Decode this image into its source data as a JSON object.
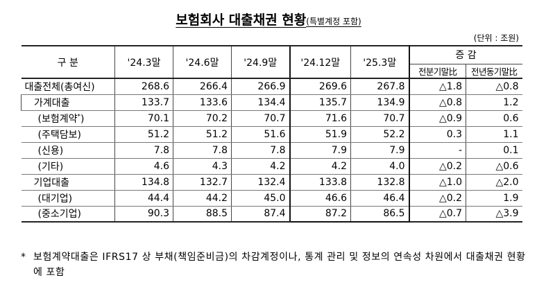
{
  "title": {
    "main": "보험회사 대출채권 현황",
    "sub": "(특별계정 포함)"
  },
  "unit": "(단위 : 조원)",
  "header": {
    "category": "구  분",
    "periods": [
      "'24.3말",
      "'24.6말",
      "'24.9말",
      "'24.12말",
      "'25.3말"
    ],
    "change": "증   감",
    "qoq": "전분기말比",
    "yoy": "전년동기말比"
  },
  "rows": [
    {
      "label": "대출전체(총여신)",
      "values": [
        "268.6",
        "266.4",
        "266.9",
        "269.6",
        "267.8"
      ],
      "qoq": "△1.8",
      "yoy": "△0.8"
    },
    {
      "label": "가계대출",
      "values": [
        "133.7",
        "133.6",
        "134.4",
        "135.7",
        "134.9"
      ],
      "qoq": "△0.8",
      "yoy": "1.2"
    },
    {
      "label": "(보험계약",
      "label_sup": "*",
      "label_tail": ")",
      "values": [
        "70.1",
        "70.2",
        "70.7",
        "71.6",
        "70.7"
      ],
      "qoq": "△0.9",
      "yoy": "0.6"
    },
    {
      "label": "(주택담보)",
      "values": [
        "51.2",
        "51.2",
        "51.6",
        "51.9",
        "52.2"
      ],
      "qoq": "0.3",
      "yoy": "1.1"
    },
    {
      "label": "(신용)",
      "values": [
        "7.8",
        "7.8",
        "7.8",
        "7.9",
        "7.9"
      ],
      "qoq": "-",
      "yoy": "0.1"
    },
    {
      "label": "(기타)",
      "values": [
        "4.6",
        "4.3",
        "4.2",
        "4.2",
        "4.0"
      ],
      "qoq": "△0.2",
      "yoy": "△0.6"
    },
    {
      "label": "기업대출",
      "values": [
        "134.8",
        "132.7",
        "132.4",
        "133.8",
        "132.8"
      ],
      "qoq": "△1.0",
      "yoy": "△2.0"
    },
    {
      "label": "(대기업)",
      "values": [
        "44.4",
        "44.2",
        "45.0",
        "46.6",
        "46.4"
      ],
      "qoq": "△0.2",
      "yoy": "1.9"
    },
    {
      "label": "(중소기업)",
      "values": [
        "90.3",
        "88.5",
        "87.4",
        "87.2",
        "86.5"
      ],
      "qoq": "△0.7",
      "yoy": "△3.9"
    }
  ],
  "footnote": {
    "mark": "*",
    "text": "보험계약대출은 IFRS17 상 부채(책임준비금)의 차감계정이나, 통계 관리 및 정보의 연속성 차원에서 대출채권 현황에 포함"
  }
}
